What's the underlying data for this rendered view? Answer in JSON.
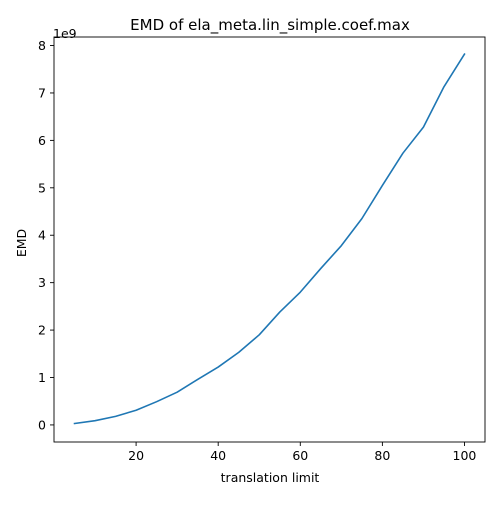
{
  "chart_data": {
    "type": "line",
    "title": "EMD of ela_meta.lin_simple.coef.max",
    "xlabel": "translation limit",
    "ylabel": "EMD",
    "y_offset_label": "1e9",
    "xlim": [
      0,
      105
    ],
    "ylim": [
      -0.36,
      8.18
    ],
    "x_ticks": [
      20,
      40,
      60,
      80,
      100
    ],
    "y_ticks": [
      0,
      1,
      2,
      3,
      4,
      5,
      6,
      7,
      8
    ],
    "x_tick_labels": [
      "20",
      "40",
      "60",
      "80",
      "100"
    ],
    "y_tick_labels": [
      "0",
      "1",
      "2",
      "3",
      "4",
      "5",
      "6",
      "7",
      "8"
    ],
    "grid": false,
    "line_color": "#1f77b4",
    "series": [
      {
        "x": [
          5,
          10,
          15,
          20,
          25,
          30,
          35,
          40,
          45,
          50,
          55,
          60,
          65,
          70,
          75,
          80,
          85,
          90,
          95,
          100
        ],
        "values": [
          0.03,
          0.09,
          0.18,
          0.31,
          0.49,
          0.69,
          0.96,
          1.22,
          1.53,
          1.9,
          2.38,
          2.8,
          3.3,
          3.78,
          4.35,
          5.05,
          5.73,
          6.28,
          7.13,
          7.82
        ]
      }
    ]
  }
}
